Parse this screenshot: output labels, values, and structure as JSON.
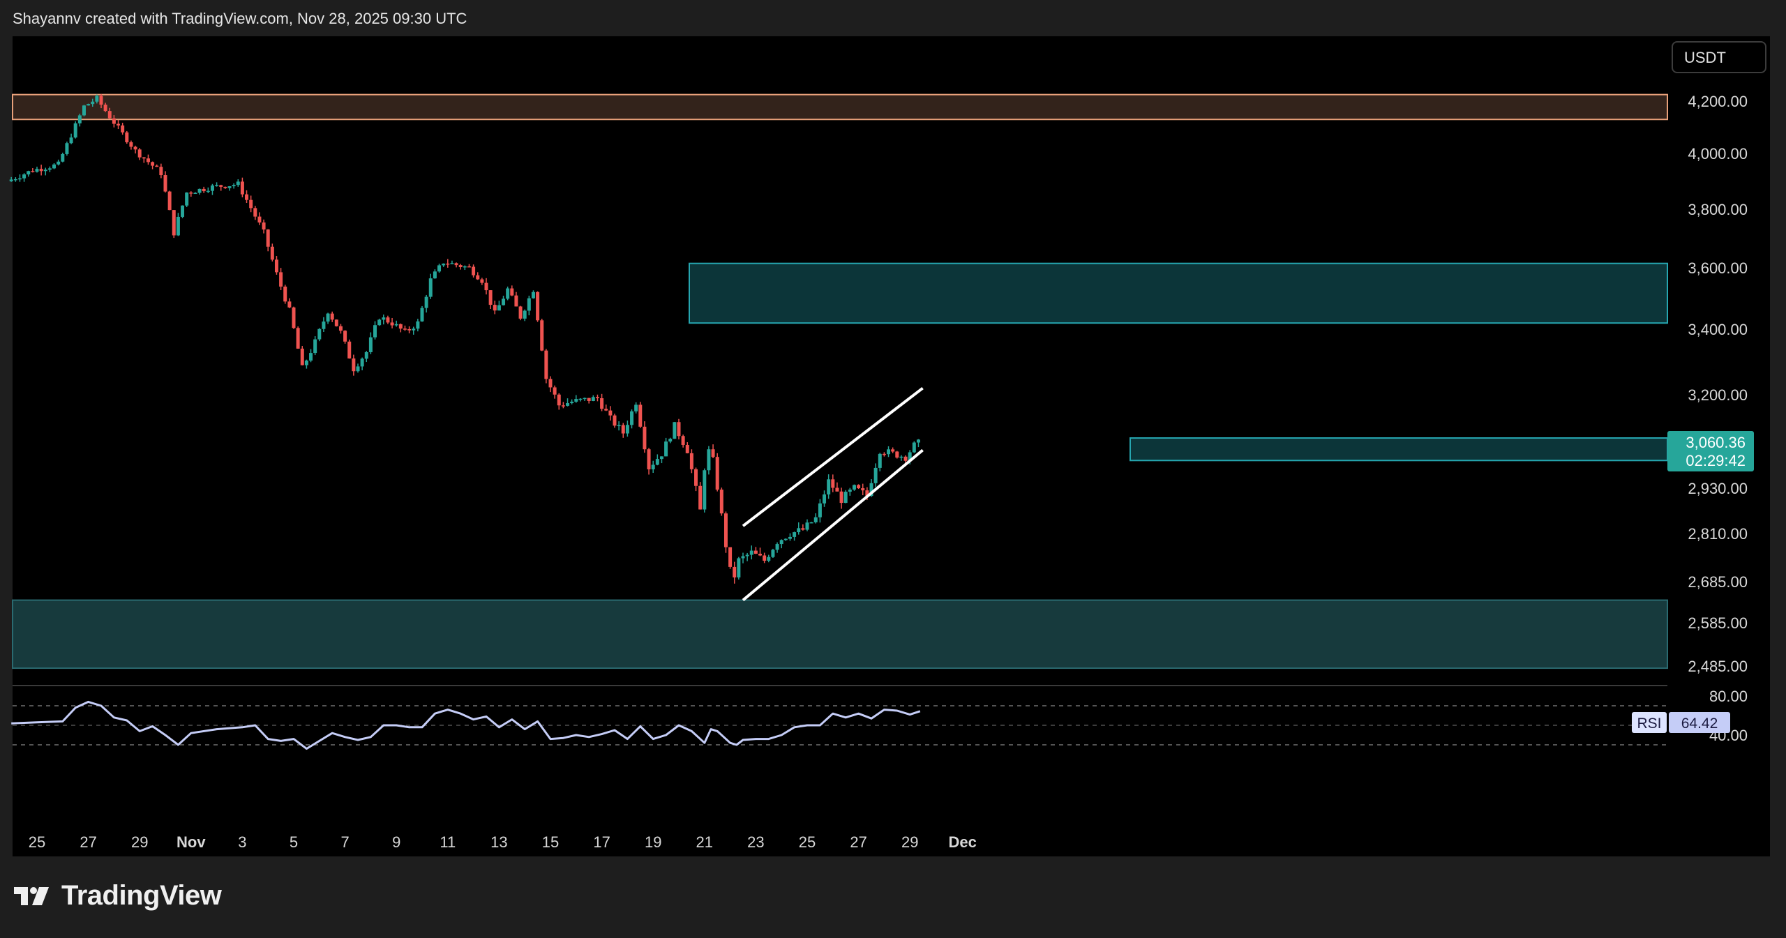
{
  "header": {
    "text": "Shayannv created with TradingView.com, Nov 28, 2025 09:30 UTC"
  },
  "currency_button": "USDT",
  "brand": "TradingView",
  "colors": {
    "up": "#26a69a",
    "down": "#ef5350",
    "zone_resistance": "#e8a07a",
    "zone_supply": "#26a6b0",
    "zone_demand": "#2a6a70",
    "rsi_line": "#c5cdf7",
    "channel": "#ffffff"
  },
  "price_marker": {
    "price": "3,060.36",
    "countdown": "02:29:42"
  },
  "rsi_label": {
    "name": "RSI",
    "value": "64.42"
  },
  "chart_data": {
    "type": "candlestick",
    "price_axis_labels": [
      "4,200.00",
      "4,000.00",
      "3,800.00",
      "3,600.00",
      "3,400.00",
      "3,200.00",
      "2,930.00",
      "2,810.00",
      "2,685.00",
      "2,585.00",
      "2,485.00"
    ],
    "rsi_axis_labels": [
      "80.00",
      "40.00"
    ],
    "x_tick_labels": [
      "25",
      "27",
      "29",
      "Nov",
      "3",
      "5",
      "7",
      "9",
      "11",
      "13",
      "15",
      "17",
      "19",
      "21",
      "23",
      "25",
      "27",
      "29",
      "Dec"
    ],
    "zones": [
      {
        "name": "resistance",
        "low": 4130,
        "high": 4225
      },
      {
        "name": "supply",
        "low": 3420,
        "high": 3615
      },
      {
        "name": "mid-supply",
        "low": 3010,
        "high": 3075
      },
      {
        "name": "demand",
        "low": 2480,
        "high": 2640
      }
    ],
    "channel": {
      "upper": [
        {
          "x": "Nov 21 12:00",
          "y": 2830
        },
        {
          "x": "Nov 28 12:00",
          "y": 3220
        }
      ],
      "lower": [
        {
          "x": "Nov 21 12:00",
          "y": 2640
        },
        {
          "x": "Nov 28 12:00",
          "y": 3040
        }
      ]
    },
    "close_path": [
      {
        "x": "Oct 24",
        "y": 3900
      },
      {
        "x": "Oct 25",
        "y": 3940
      },
      {
        "x": "Oct 26",
        "y": 3960
      },
      {
        "x": "Oct 27",
        "y": 4180
      },
      {
        "x": "Oct 27 12:00",
        "y": 4210
      },
      {
        "x": "Oct 28",
        "y": 4140
      },
      {
        "x": "Oct 29",
        "y": 4010
      },
      {
        "x": "Oct 30",
        "y": 3930
      },
      {
        "x": "Oct 30 12:00",
        "y": 3720
      },
      {
        "x": "Oct 31",
        "y": 3860
      },
      {
        "x": "Nov 1",
        "y": 3880
      },
      {
        "x": "Nov 2",
        "y": 3890
      },
      {
        "x": "Nov 3",
        "y": 3720
      },
      {
        "x": "Nov 3 12:00",
        "y": 3580
      },
      {
        "x": "Nov 4",
        "y": 3460
      },
      {
        "x": "Nov 4 12:00",
        "y": 3280
      },
      {
        "x": "Nov 5",
        "y": 3360
      },
      {
        "x": "Nov 5 12:00",
        "y": 3460
      },
      {
        "x": "Nov 6",
        "y": 3390
      },
      {
        "x": "Nov 6 12:00",
        "y": 3280
      },
      {
        "x": "Nov 7",
        "y": 3330
      },
      {
        "x": "Nov 7 12:00",
        "y": 3440
      },
      {
        "x": "Nov 8",
        "y": 3420
      },
      {
        "x": "Nov 8 12:00",
        "y": 3390
      },
      {
        "x": "Nov 9",
        "y": 3420
      },
      {
        "x": "Nov 9 12:00",
        "y": 3560
      },
      {
        "x": "Nov 10",
        "y": 3620
      },
      {
        "x": "Nov 11",
        "y": 3600
      },
      {
        "x": "Nov 11 12:00",
        "y": 3560
      },
      {
        "x": "Nov 12",
        "y": 3450
      },
      {
        "x": "Nov 12 12:00",
        "y": 3530
      },
      {
        "x": "Nov 13",
        "y": 3440
      },
      {
        "x": "Nov 13 12:00",
        "y": 3530
      },
      {
        "x": "Nov 14",
        "y": 3250
      },
      {
        "x": "Nov 14 12:00",
        "y": 3170
      },
      {
        "x": "Nov 15",
        "y": 3180
      },
      {
        "x": "Nov 16",
        "y": 3190
      },
      {
        "x": "Nov 16 12:00",
        "y": 3130
      },
      {
        "x": "Nov 17",
        "y": 3090
      },
      {
        "x": "Nov 17 12:00",
        "y": 3180
      },
      {
        "x": "Nov 18",
        "y": 2990
      },
      {
        "x": "Nov 18 12:00",
        "y": 3030
      },
      {
        "x": "Nov 19",
        "y": 3110
      },
      {
        "x": "Nov 19 12:00",
        "y": 3040
      },
      {
        "x": "Nov 20",
        "y": 2870
      },
      {
        "x": "Nov 20 06:00",
        "y": 3050
      },
      {
        "x": "Nov 20 12:00",
        "y": 3010
      },
      {
        "x": "Nov 21",
        "y": 2780
      },
      {
        "x": "Nov 21 06:00",
        "y": 2680
      },
      {
        "x": "Nov 21 12:00",
        "y": 2740
      },
      {
        "x": "Nov 22",
        "y": 2760
      },
      {
        "x": "Nov 22 12:00",
        "y": 2740
      },
      {
        "x": "Nov 23",
        "y": 2790
      },
      {
        "x": "Nov 23 12:00",
        "y": 2810
      },
      {
        "x": "Nov 24",
        "y": 2820
      },
      {
        "x": "Nov 24 12:00",
        "y": 2850
      },
      {
        "x": "Nov 25",
        "y": 2950
      },
      {
        "x": "Nov 25 12:00",
        "y": 2900
      },
      {
        "x": "Nov 26",
        "y": 2930
      },
      {
        "x": "Nov 26 12:00",
        "y": 2910
      },
      {
        "x": "Nov 27",
        "y": 3040
      },
      {
        "x": "Nov 27 12:00",
        "y": 3030
      },
      {
        "x": "Nov 28",
        "y": 3020
      },
      {
        "x": "Nov 28 09:30",
        "y": 3060
      }
    ],
    "rsi_levels": [
      70,
      30
    ],
    "rsi": [
      {
        "x": "Oct 24",
        "y": 52
      },
      {
        "x": "Oct 25",
        "y": 53
      },
      {
        "x": "Oct 26",
        "y": 54
      },
      {
        "x": "Oct 26 12:00",
        "y": 68
      },
      {
        "x": "Oct 27",
        "y": 74
      },
      {
        "x": "Oct 27 12:00",
        "y": 70
      },
      {
        "x": "Oct 28",
        "y": 58
      },
      {
        "x": "Oct 28 12:00",
        "y": 55
      },
      {
        "x": "Oct 29",
        "y": 44
      },
      {
        "x": "Oct 29 12:00",
        "y": 49
      },
      {
        "x": "Oct 30",
        "y": 40
      },
      {
        "x": "Oct 30 12:00",
        "y": 30
      },
      {
        "x": "Oct 31",
        "y": 42
      },
      {
        "x": "Nov 1",
        "y": 46
      },
      {
        "x": "Nov 2",
        "y": 48
      },
      {
        "x": "Nov 2 12:00",
        "y": 50
      },
      {
        "x": "Nov 3",
        "y": 36
      },
      {
        "x": "Nov 3 12:00",
        "y": 34
      },
      {
        "x": "Nov 4",
        "y": 36
      },
      {
        "x": "Nov 4 12:00",
        "y": 26
      },
      {
        "x": "Nov 5",
        "y": 34
      },
      {
        "x": "Nov 5 12:00",
        "y": 42
      },
      {
        "x": "Nov 6",
        "y": 38
      },
      {
        "x": "Nov 6 12:00",
        "y": 35
      },
      {
        "x": "Nov 7",
        "y": 38
      },
      {
        "x": "Nov 7 12:00",
        "y": 50
      },
      {
        "x": "Nov 8",
        "y": 50
      },
      {
        "x": "Nov 8 12:00",
        "y": 48
      },
      {
        "x": "Nov 9",
        "y": 48
      },
      {
        "x": "Nov 9 12:00",
        "y": 62
      },
      {
        "x": "Nov 10",
        "y": 66
      },
      {
        "x": "Nov 10 12:00",
        "y": 62
      },
      {
        "x": "Nov 11",
        "y": 56
      },
      {
        "x": "Nov 11 12:00",
        "y": 59
      },
      {
        "x": "Nov 12",
        "y": 48
      },
      {
        "x": "Nov 12 12:00",
        "y": 56
      },
      {
        "x": "Nov 13",
        "y": 46
      },
      {
        "x": "Nov 13 12:00",
        "y": 54
      },
      {
        "x": "Nov 14",
        "y": 36
      },
      {
        "x": "Nov 14 12:00",
        "y": 37
      },
      {
        "x": "Nov 15",
        "y": 40
      },
      {
        "x": "Nov 15 12:00",
        "y": 38
      },
      {
        "x": "Nov 16",
        "y": 41
      },
      {
        "x": "Nov 16 12:00",
        "y": 45
      },
      {
        "x": "Nov 17",
        "y": 36
      },
      {
        "x": "Nov 17 12:00",
        "y": 49
      },
      {
        "x": "Nov 18",
        "y": 36
      },
      {
        "x": "Nov 18 12:00",
        "y": 40
      },
      {
        "x": "Nov 19",
        "y": 50
      },
      {
        "x": "Nov 19 12:00",
        "y": 44
      },
      {
        "x": "Nov 20",
        "y": 32
      },
      {
        "x": "Nov 20 06:00",
        "y": 46
      },
      {
        "x": "Nov 20 12:00",
        "y": 44
      },
      {
        "x": "Nov 21",
        "y": 32
      },
      {
        "x": "Nov 21 06:00",
        "y": 30
      },
      {
        "x": "Nov 21 12:00",
        "y": 35
      },
      {
        "x": "Nov 22",
        "y": 36
      },
      {
        "x": "Nov 22 12:00",
        "y": 36
      },
      {
        "x": "Nov 23",
        "y": 40
      },
      {
        "x": "Nov 23 12:00",
        "y": 48
      },
      {
        "x": "Nov 24",
        "y": 50
      },
      {
        "x": "Nov 24 12:00",
        "y": 50
      },
      {
        "x": "Nov 25",
        "y": 62
      },
      {
        "x": "Nov 25 12:00",
        "y": 58
      },
      {
        "x": "Nov 26",
        "y": 62
      },
      {
        "x": "Nov 26 12:00",
        "y": 57
      },
      {
        "x": "Nov 27",
        "y": 66
      },
      {
        "x": "Nov 27 12:00",
        "y": 65
      },
      {
        "x": "Nov 28",
        "y": 61
      },
      {
        "x": "Nov 28 09:30",
        "y": 64.42
      }
    ]
  }
}
